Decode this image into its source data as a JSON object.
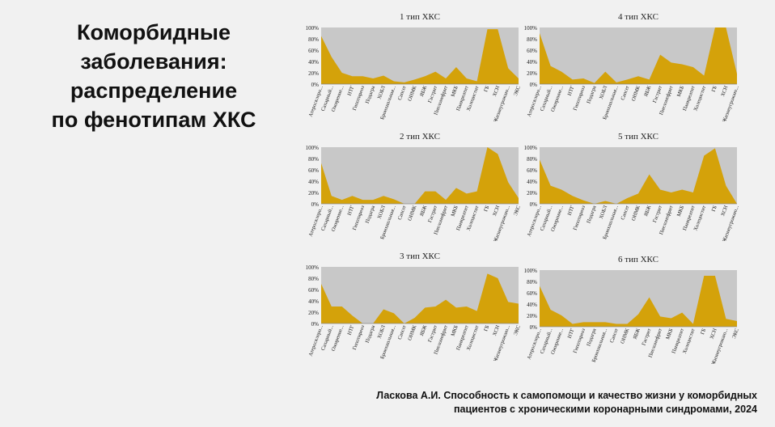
{
  "slide": {
    "title_lines": [
      "Коморбидные",
      "заболевания:",
      "распределение",
      "по фенотипам ХКС"
    ],
    "footer_lines": [
      "Ласкова А.И. Способность к самопомощи и качество жизни у коморбидных",
      "пациентов с хроническими коронарными синдромами, 2024"
    ]
  },
  "colors": {
    "plot_bg": "#c8c8c8",
    "area": "#d4a20a",
    "text": "#222222"
  },
  "chart_data": [
    {
      "type": "area",
      "title": "1 тип ХКС",
      "ylim": [
        0,
        100
      ],
      "yticks": [
        "0%",
        "20%",
        "40%",
        "60%",
        "80%",
        "100%"
      ],
      "categories": [
        "Атеросклеро...",
        "Сахарный...",
        "Ожирение...",
        "НТГ",
        "Гипотиреоз",
        "Подагра",
        "ХОБЛ",
        "Бронхиальная...",
        "Cancer",
        "ОНМК",
        "ЯБЖ",
        "Гастрит",
        "Пиелонефрит",
        "МКБ",
        "Панкреатит",
        "Холецистит",
        "ГБ",
        "ХСН",
        "Жизнеугрожаю...",
        "ЭКС"
      ],
      "values": [
        85,
        48,
        20,
        14,
        14,
        10,
        15,
        5,
        3,
        8,
        14,
        22,
        10,
        30,
        10,
        5,
        97,
        97,
        28,
        10
      ]
    },
    {
      "type": "area",
      "title": "4 тип ХКС",
      "ylim": [
        0,
        100
      ],
      "yticks": [
        "0%",
        "20%",
        "40%",
        "60%",
        "80%",
        "100%"
      ],
      "categories": [
        "Атеросклеро...",
        "Сахарный...",
        "Ожирение...",
        "НТГ",
        "Гипотиреоз",
        "Подагра",
        "ХОБЛ",
        "Бронхиальная...",
        "Cancer",
        "ОНМК",
        "ЯБЖ",
        "Гастрит",
        "Пиелонефрит",
        "МКБ",
        "Панкреатит",
        "Холецистит",
        "ГБ",
        "ХСН",
        "Жизнеугрожаю..."
      ],
      "values": [
        90,
        32,
        22,
        8,
        10,
        2,
        22,
        3,
        8,
        14,
        8,
        52,
        38,
        35,
        30,
        15,
        100,
        100,
        18
      ]
    },
    {
      "type": "area",
      "title": "2 тип ХКС",
      "ylim": [
        0,
        100
      ],
      "yticks": [
        "0%",
        "20%",
        "40%",
        "60%",
        "80%",
        "100%"
      ],
      "categories": [
        "Атеросклеро...",
        "Сахарный...",
        "Ожирение...",
        "НТГ",
        "Гипотиреоз",
        "Подагра",
        "ХОБЛ",
        "Бронхиальная...",
        "Cancer",
        "ОНМК",
        "ЯБЖ",
        "Гастрит",
        "Пиелонефрит",
        "МКБ",
        "Панкреатит",
        "Холецистит",
        "ГБ",
        "ХСН",
        "Жизнеугрожаю...",
        "ЭКС"
      ],
      "values": [
        72,
        14,
        7,
        14,
        7,
        7,
        14,
        8,
        0,
        0,
        22,
        22,
        7,
        28,
        18,
        22,
        100,
        88,
        38,
        10
      ]
    },
    {
      "type": "area",
      "title": "5 тип ХКС",
      "ylim": [
        0,
        100
      ],
      "yticks": [
        "0%",
        "20%",
        "40%",
        "60%",
        "80%",
        "100%"
      ],
      "categories": [
        "Атеросклеро...",
        "Сахарный...",
        "Ожирение...",
        "НТГ",
        "Гипотиреоз",
        "Подагра",
        "ХОБЛ",
        "Бронхиальная...",
        "Cancer",
        "ОНМК",
        "ЯБЖ",
        "Гастрит",
        "Пиелонефрит",
        "МКБ",
        "Панкреатит",
        "Холецистит",
        "ГБ",
        "ХСН",
        "Жизнеугрожаю..."
      ],
      "values": [
        78,
        32,
        25,
        14,
        6,
        0,
        5,
        0,
        10,
        18,
        52,
        25,
        20,
        25,
        20,
        85,
        98,
        32,
        0
      ]
    },
    {
      "type": "area",
      "title": "3 тип ХКС",
      "ylim": [
        0,
        100
      ],
      "yticks": [
        "0%",
        "20%",
        "40%",
        "60%",
        "80%",
        "100%"
      ],
      "categories": [
        "Атеросклеро...",
        "Сахарный...",
        "Ожирение...",
        "НТГ",
        "Гипотиреоз",
        "Подагра",
        "ХОБЛ",
        "Бронхиальная...",
        "Cancer",
        "ОНМК",
        "ЯБЖ",
        "Гастрит",
        "Пиелонефрит",
        "МКБ",
        "Панкреатит",
        "Холецистит",
        "ГБ",
        "ХСН",
        "Жизнеугрожаю...",
        "ЭКС"
      ],
      "values": [
        70,
        30,
        30,
        14,
        0,
        0,
        25,
        18,
        0,
        10,
        28,
        30,
        42,
        28,
        30,
        22,
        88,
        80,
        38,
        35
      ]
    },
    {
      "type": "area",
      "title": "6 тип ХКС",
      "ylim": [
        0,
        100
      ],
      "yticks": [
        "0%",
        "20%",
        "40%",
        "60%",
        "80%",
        "100%"
      ],
      "categories": [
        "Атеросклеро...",
        "Сахарный...",
        "Ожирение...",
        "НТГ",
        "Гипотиреоз",
        "Подагра",
        "Бронхиальная...",
        "Cancer",
        "ОНМК",
        "ЯБЖ",
        "Гастрит",
        "Пиелонефрит",
        "МКБ",
        "Панкреатит",
        "Холецистит",
        "ГБ",
        "ХСН",
        "Жизнеугрожаю...",
        "ЭКС"
      ],
      "values": [
        72,
        30,
        20,
        5,
        8,
        8,
        8,
        5,
        5,
        22,
        52,
        18,
        15,
        25,
        5,
        90,
        90,
        14,
        10
      ]
    }
  ]
}
